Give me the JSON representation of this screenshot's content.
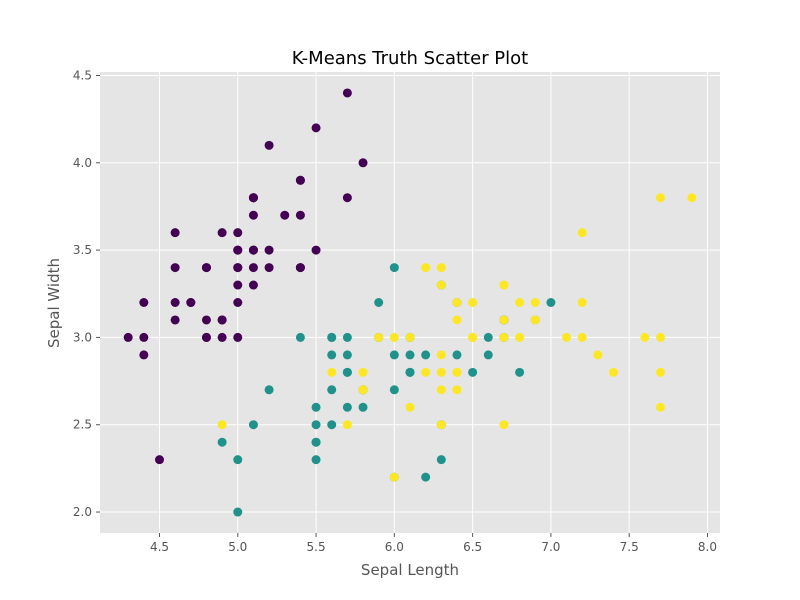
{
  "chart_data": {
    "type": "scatter",
    "title": "K-Means Truth Scatter Plot",
    "xlabel": "Sepal Length",
    "ylabel": "Sepal Width",
    "xlim": [
      4.12,
      8.08
    ],
    "ylim": [
      1.88,
      4.52
    ],
    "xticks": [
      "4.5",
      "5.0",
      "5.5",
      "6.0",
      "6.5",
      "7.0",
      "7.5",
      "8.0"
    ],
    "yticks": [
      "2.0",
      "2.5",
      "3.0",
      "3.5",
      "4.0",
      "4.5"
    ],
    "grid": true,
    "background": "#e5e5e5",
    "series": [
      {
        "color": "#440154",
        "points": [
          [
            5.1,
            3.5
          ],
          [
            4.9,
            3.0
          ],
          [
            4.7,
            3.2
          ],
          [
            4.6,
            3.1
          ],
          [
            5.0,
            3.6
          ],
          [
            5.4,
            3.9
          ],
          [
            4.6,
            3.4
          ],
          [
            5.0,
            3.4
          ],
          [
            4.4,
            2.9
          ],
          [
            4.9,
            3.1
          ],
          [
            5.4,
            3.7
          ],
          [
            4.8,
            3.4
          ],
          [
            4.8,
            3.0
          ],
          [
            4.3,
            3.0
          ],
          [
            5.8,
            4.0
          ],
          [
            5.7,
            4.4
          ],
          [
            5.4,
            3.9
          ],
          [
            5.1,
            3.5
          ],
          [
            5.7,
            3.8
          ],
          [
            5.1,
            3.8
          ],
          [
            5.4,
            3.4
          ],
          [
            5.1,
            3.7
          ],
          [
            4.6,
            3.6
          ],
          [
            5.1,
            3.3
          ],
          [
            4.8,
            3.4
          ],
          [
            5.0,
            3.0
          ],
          [
            5.0,
            3.4
          ],
          [
            5.2,
            3.5
          ],
          [
            5.2,
            3.4
          ],
          [
            4.7,
            3.2
          ],
          [
            4.8,
            3.1
          ],
          [
            5.4,
            3.4
          ],
          [
            5.2,
            4.1
          ],
          [
            5.5,
            4.2
          ],
          [
            4.9,
            3.1
          ],
          [
            5.0,
            3.2
          ],
          [
            5.5,
            3.5
          ],
          [
            4.9,
            3.6
          ],
          [
            4.4,
            3.0
          ],
          [
            5.1,
            3.4
          ],
          [
            5.0,
            3.5
          ],
          [
            4.5,
            2.3
          ],
          [
            4.4,
            3.2
          ],
          [
            5.0,
            3.5
          ],
          [
            5.1,
            3.8
          ],
          [
            4.8,
            3.0
          ],
          [
            5.1,
            3.8
          ],
          [
            4.6,
            3.2
          ],
          [
            5.3,
            3.7
          ],
          [
            5.0,
            3.3
          ]
        ]
      },
      {
        "color": "#21918c",
        "points": [
          [
            6.4,
            3.2
          ],
          [
            6.9,
            3.1
          ],
          [
            5.5,
            2.3
          ],
          [
            6.5,
            2.8
          ],
          [
            5.7,
            2.8
          ],
          [
            6.3,
            3.3
          ],
          [
            4.9,
            2.4
          ],
          [
            6.6,
            2.9
          ],
          [
            5.2,
            2.7
          ],
          [
            5.0,
            2.0
          ],
          [
            5.9,
            3.0
          ],
          [
            6.0,
            2.2
          ],
          [
            6.1,
            2.9
          ],
          [
            5.6,
            2.9
          ],
          [
            6.7,
            3.1
          ],
          [
            5.6,
            3.0
          ],
          [
            5.8,
            2.7
          ],
          [
            6.2,
            2.2
          ],
          [
            5.6,
            2.5
          ],
          [
            5.9,
            3.2
          ],
          [
            6.1,
            2.8
          ],
          [
            6.3,
            2.5
          ],
          [
            6.1,
            2.8
          ],
          [
            6.4,
            2.9
          ],
          [
            6.6,
            3.0
          ],
          [
            6.8,
            2.8
          ],
          [
            6.7,
            3.0
          ],
          [
            6.0,
            2.9
          ],
          [
            5.7,
            2.6
          ],
          [
            5.5,
            2.4
          ],
          [
            5.5,
            2.4
          ],
          [
            5.8,
            2.7
          ],
          [
            6.0,
            2.7
          ],
          [
            5.4,
            3.0
          ],
          [
            6.0,
            3.4
          ],
          [
            6.7,
            3.1
          ],
          [
            6.3,
            2.3
          ],
          [
            5.6,
            3.0
          ],
          [
            5.5,
            2.5
          ],
          [
            5.5,
            2.6
          ],
          [
            6.1,
            3.0
          ],
          [
            5.8,
            2.6
          ],
          [
            5.0,
            2.3
          ],
          [
            5.6,
            2.7
          ],
          [
            5.7,
            3.0
          ],
          [
            5.7,
            2.9
          ],
          [
            6.2,
            2.9
          ],
          [
            5.1,
            2.5
          ],
          [
            5.7,
            2.8
          ],
          [
            7.0,
            3.2
          ]
        ]
      },
      {
        "color": "#fde725",
        "points": [
          [
            6.3,
            3.3
          ],
          [
            5.8,
            2.7
          ],
          [
            7.1,
            3.0
          ],
          [
            6.3,
            2.9
          ],
          [
            6.5,
            3.0
          ],
          [
            7.6,
            3.0
          ],
          [
            4.9,
            2.5
          ],
          [
            7.3,
            2.9
          ],
          [
            6.7,
            2.5
          ],
          [
            7.2,
            3.6
          ],
          [
            6.5,
            3.2
          ],
          [
            6.4,
            2.7
          ],
          [
            6.8,
            3.0
          ],
          [
            5.7,
            2.5
          ],
          [
            5.8,
            2.8
          ],
          [
            6.4,
            3.2
          ],
          [
            6.5,
            3.0
          ],
          [
            7.7,
            3.8
          ],
          [
            7.7,
            2.6
          ],
          [
            6.0,
            2.2
          ],
          [
            6.9,
            3.2
          ],
          [
            5.6,
            2.8
          ],
          [
            7.7,
            2.8
          ],
          [
            6.3,
            2.7
          ],
          [
            6.7,
            3.3
          ],
          [
            7.2,
            3.2
          ],
          [
            6.2,
            2.8
          ],
          [
            6.1,
            3.0
          ],
          [
            6.4,
            2.8
          ],
          [
            7.2,
            3.0
          ],
          [
            7.4,
            2.8
          ],
          [
            7.9,
            3.8
          ],
          [
            6.4,
            2.8
          ],
          [
            6.3,
            2.8
          ],
          [
            6.1,
            2.6
          ],
          [
            7.7,
            3.0
          ],
          [
            6.3,
            3.4
          ],
          [
            6.4,
            3.1
          ],
          [
            6.0,
            3.0
          ],
          [
            6.9,
            3.1
          ],
          [
            6.7,
            3.1
          ],
          [
            6.9,
            3.1
          ],
          [
            5.8,
            2.7
          ],
          [
            6.8,
            3.2
          ],
          [
            6.7,
            3.3
          ],
          [
            6.7,
            3.0
          ],
          [
            6.3,
            2.5
          ],
          [
            6.5,
            3.0
          ],
          [
            6.2,
            3.4
          ],
          [
            5.9,
            3.0
          ]
        ]
      }
    ]
  }
}
